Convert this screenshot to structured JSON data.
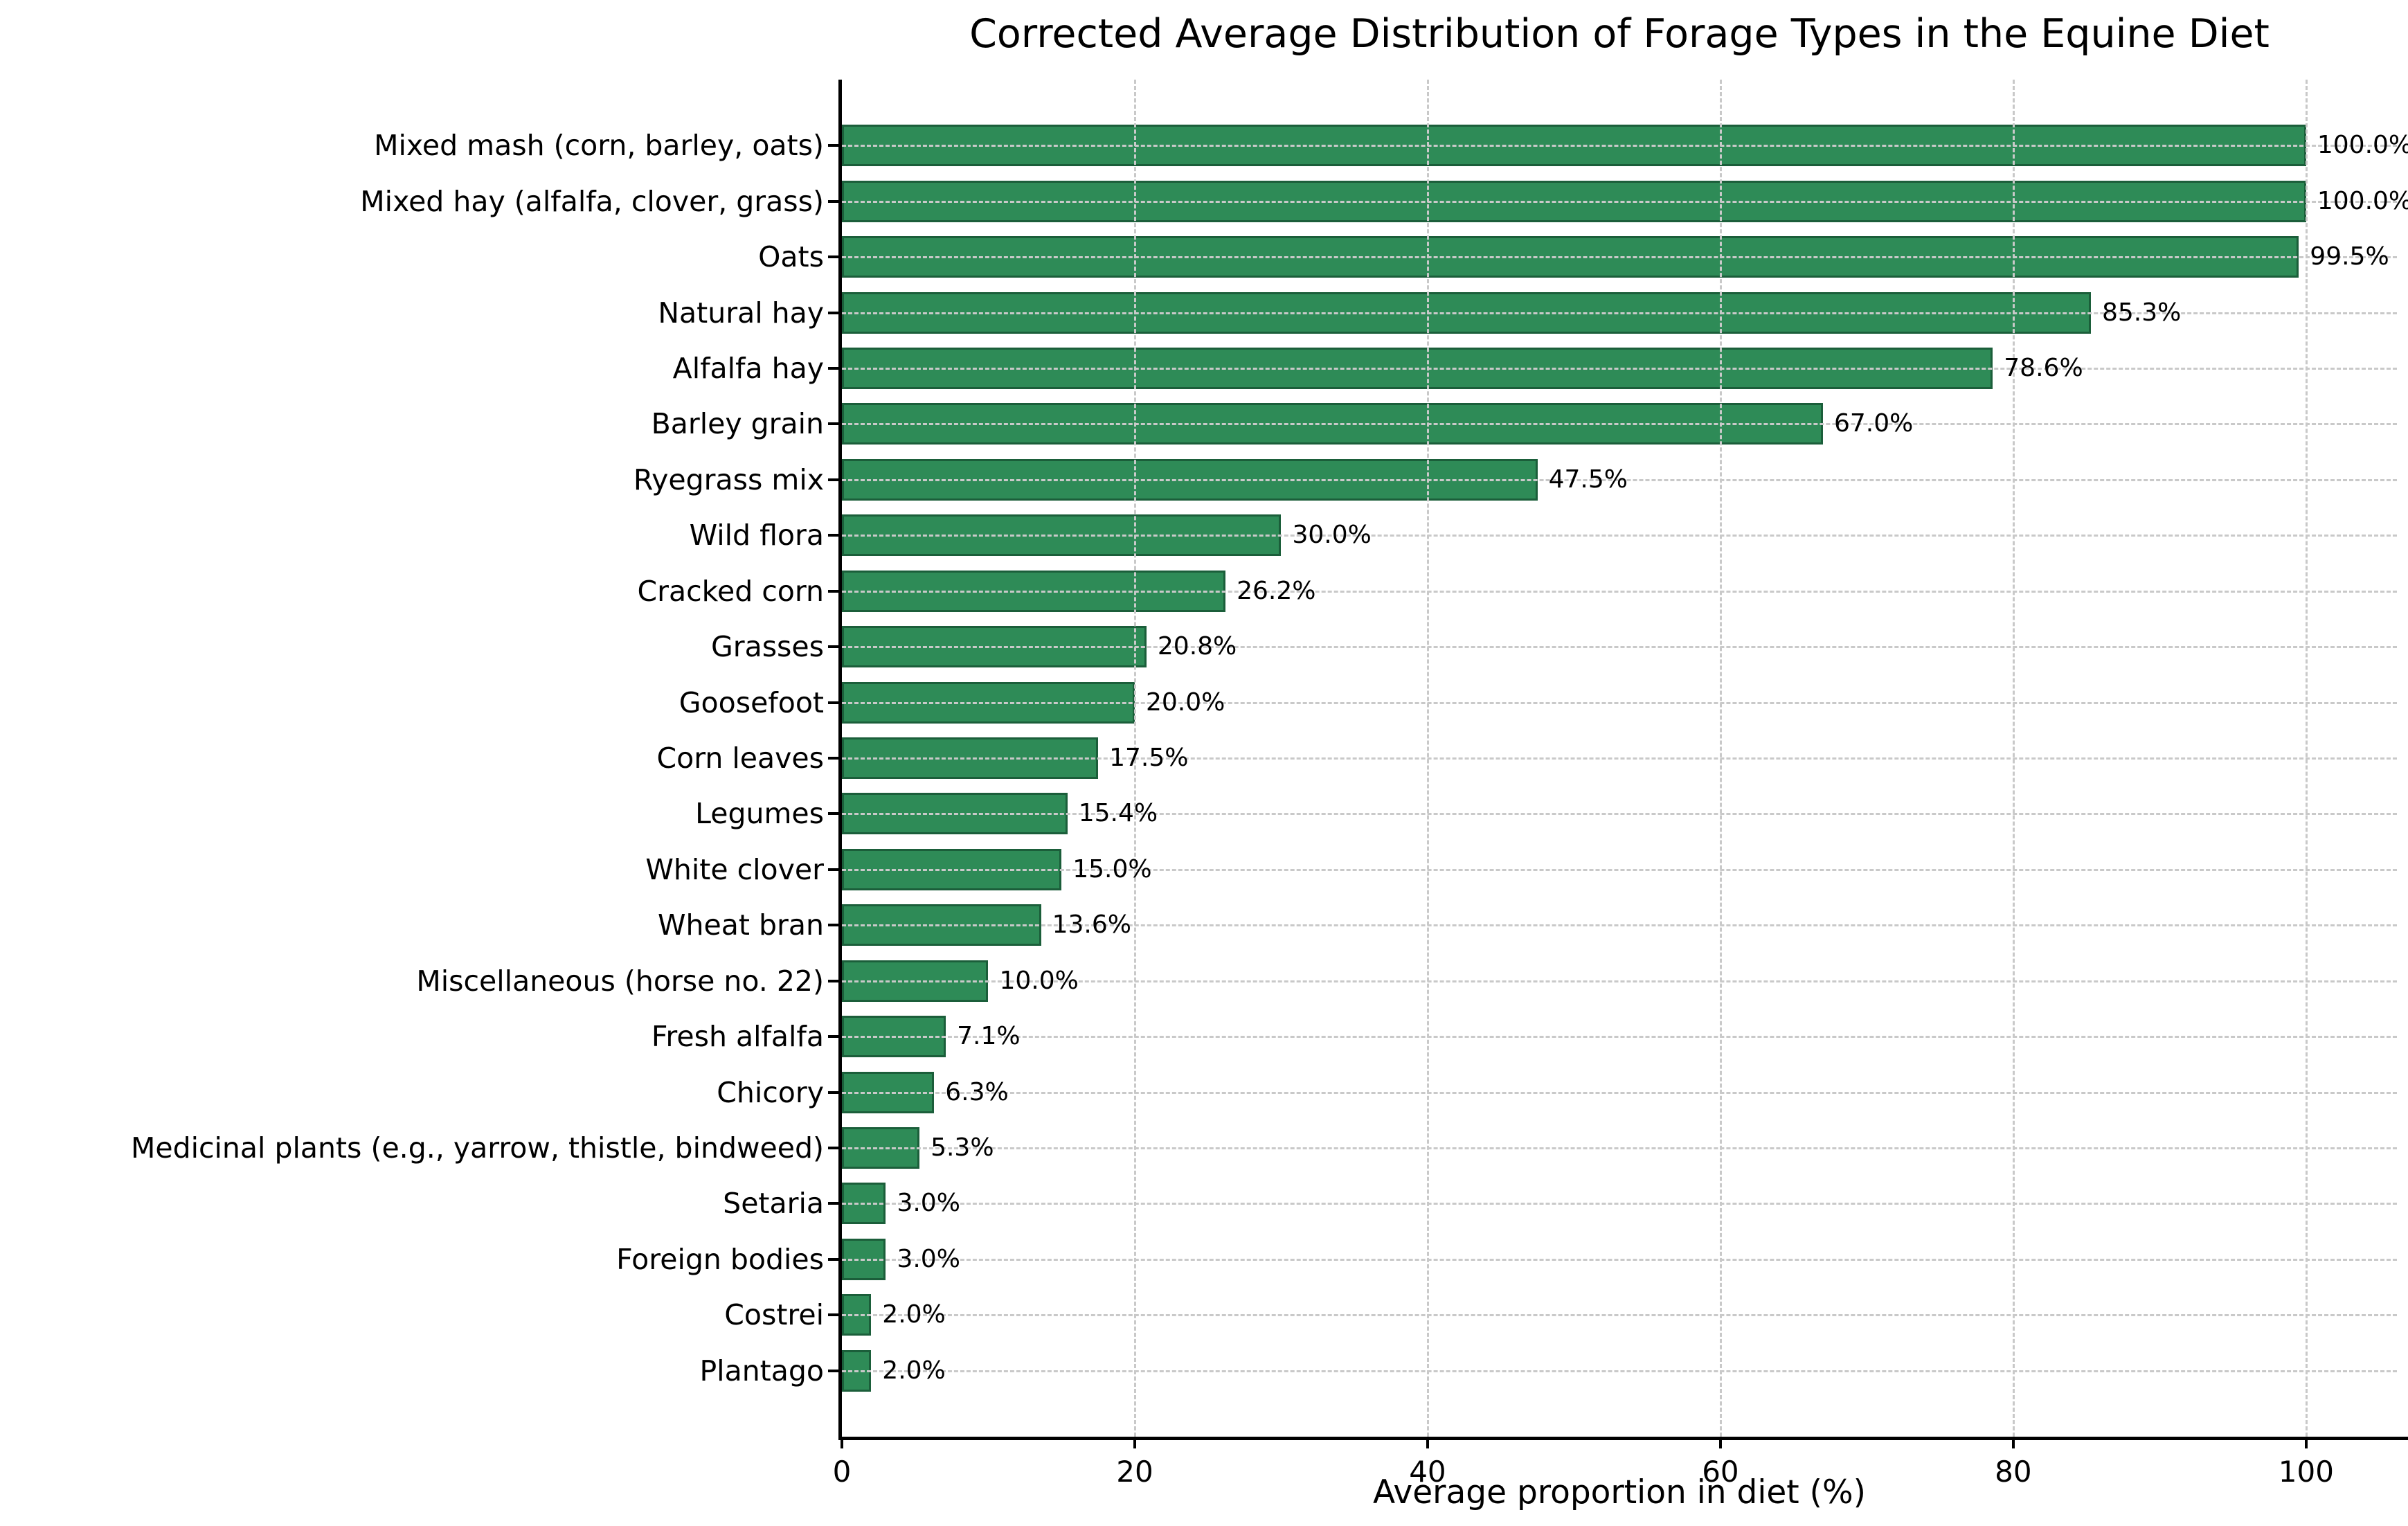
{
  "chart_data": {
    "type": "bar",
    "orientation": "horizontal",
    "title": "Corrected Average Distribution of Forage Types in the Equine Diet",
    "xlabel": "Average proportion in diet (%)",
    "ylabel": "",
    "categories": [
      "Mixed mash (corn, barley, oats)",
      "Mixed hay (alfalfa, clover, grass)",
      "Oats",
      "Natural hay",
      "Alfalfa hay",
      "Barley grain",
      "Ryegrass mix",
      "Wild flora",
      "Cracked corn",
      "Grasses",
      "Goosefoot",
      "Corn leaves",
      "Legumes",
      "White clover",
      "Wheat bran",
      "Miscellaneous (horse no. 22)",
      "Fresh alfalfa",
      "Chicory",
      "Medicinal plants (e.g., yarrow, thistle, bindweed)",
      "Setaria",
      "Foreign bodies",
      "Costrei",
      "Plantago"
    ],
    "values": [
      100.0,
      100.0,
      99.5,
      85.3,
      78.6,
      67.0,
      47.5,
      30.0,
      26.2,
      20.8,
      20.0,
      17.5,
      15.4,
      15.0,
      13.6,
      10.0,
      7.1,
      6.3,
      5.3,
      3.0,
      3.0,
      2.0,
      2.0
    ],
    "value_labels": [
      "100.0%",
      "100.0%",
      "99.5%",
      "85.3%",
      "78.6%",
      "67.0%",
      "47.5%",
      "30.0%",
      "26.2%",
      "20.8%",
      "20.0%",
      "17.5%",
      "15.4%",
      "15.0%",
      "13.6%",
      "10.0%",
      "7.1%",
      "6.3%",
      "5.3%",
      "3.0%",
      "3.0%",
      "2.0%",
      "2.0%"
    ],
    "xlim": [
      0,
      106.2
    ],
    "xticks": [
      0,
      20,
      40,
      60,
      80,
      100
    ],
    "grid": true,
    "legend": "none",
    "colors": {
      "bar_fill": "#2e8b57",
      "bar_edge": "#1b5e3a",
      "grid_line": "#c9c9c9",
      "axis_line": "#000000",
      "background": "#ffffff",
      "text": "#000000"
    }
  }
}
